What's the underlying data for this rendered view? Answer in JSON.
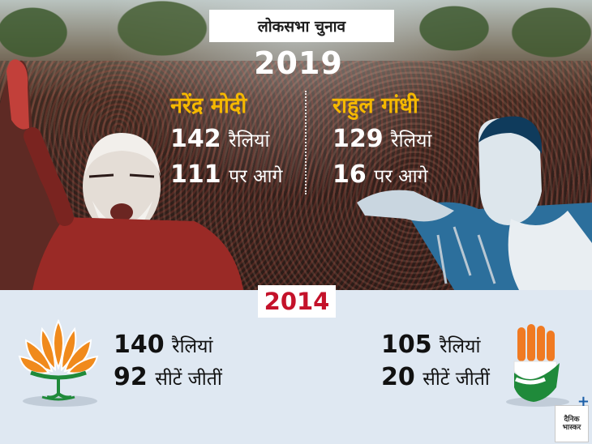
{
  "header": {
    "tag": "लोकसभा चुनाव",
    "year": "2019"
  },
  "election_2019": {
    "left": {
      "name": "नरेंद्र मोदी",
      "rallies_num": "142",
      "rallies_word": "रैलियां",
      "lead_num": "111",
      "lead_word": "पर आगे"
    },
    "right": {
      "name": "राहुल गांधी",
      "rallies_num": "129",
      "rallies_word": "रैलियां",
      "lead_num": "16",
      "lead_word": "पर आगे"
    }
  },
  "election_2014": {
    "year": "2014",
    "left": {
      "rallies_num": "140",
      "rallies_word": "रैलियां",
      "seats_num": "92",
      "seats_word": "सीटें जीतीं"
    },
    "right": {
      "rallies_num": "105",
      "rallies_word": "रैलियां",
      "seats_num": "20",
      "seats_word": "सीटें जीतीं"
    }
  },
  "logo": {
    "text": "दैनिक भास्कर",
    "plus": "+"
  },
  "colors": {
    "name_accent": "#f5b800",
    "year_2014": "#c4122a",
    "lotus": "#f08a1c",
    "congress_saffron": "#f07a22",
    "congress_green": "#1f8a3a"
  }
}
